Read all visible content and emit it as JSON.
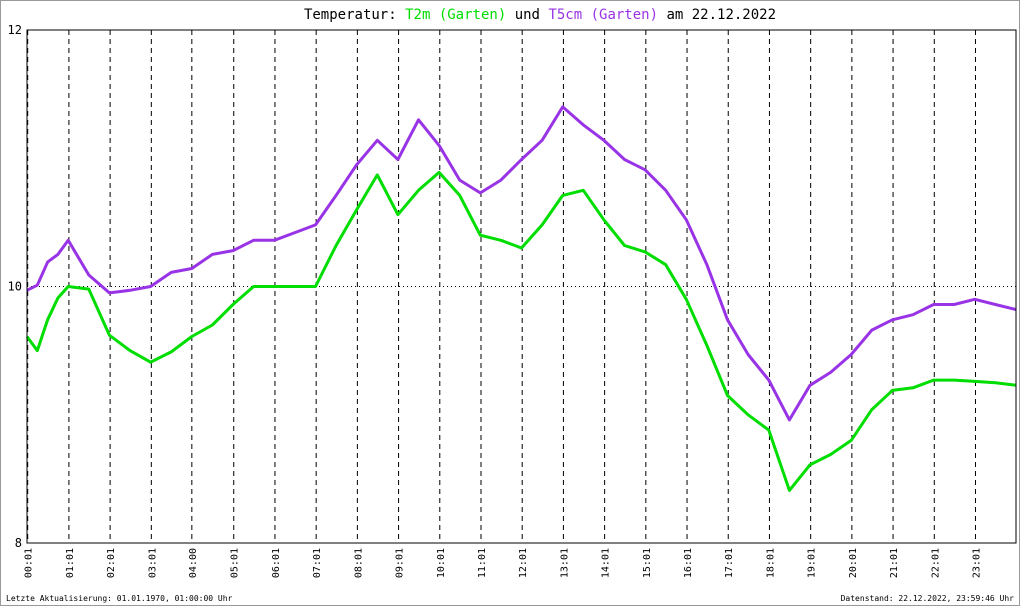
{
  "chart_data": {
    "type": "line",
    "title_prefix": "Temperatur:",
    "title_joiner": "und",
    "title_suffix": "am 22.12.2022",
    "footer_left": "Letzte Aktualisierung: 01.01.1970, 01:00:00 Uhr",
    "footer_right": "Datenstand: 22.12.2022, 23:59:46 Uhr",
    "x": [
      0,
      0.25,
      0.5,
      0.75,
      1,
      1.5,
      2,
      2.5,
      3,
      3.5,
      4,
      4.5,
      5,
      5.5,
      6,
      6.5,
      7,
      7.5,
      8,
      8.5,
      9,
      9.5,
      10,
      10.5,
      11,
      11.5,
      12,
      12.5,
      13,
      13.5,
      14,
      14.5,
      15,
      15.5,
      16,
      16.5,
      17,
      17.5,
      18,
      18.5,
      19,
      19.5,
      20,
      20.5,
      21,
      21.5,
      22,
      22.5,
      23,
      23.5,
      24
    ],
    "xlim": [
      0,
      24
    ],
    "xticks": [
      {
        "value": 0.017,
        "label": "00:01"
      },
      {
        "value": 1.017,
        "label": "01:01"
      },
      {
        "value": 2.017,
        "label": "02:01"
      },
      {
        "value": 3.017,
        "label": "03:01"
      },
      {
        "value": 4.0,
        "label": "04:00"
      },
      {
        "value": 5.017,
        "label": "05:01"
      },
      {
        "value": 6.017,
        "label": "06:01"
      },
      {
        "value": 7.017,
        "label": "07:01"
      },
      {
        "value": 8.017,
        "label": "08:01"
      },
      {
        "value": 9.017,
        "label": "09:01"
      },
      {
        "value": 10.017,
        "label": "10:01"
      },
      {
        "value": 11.017,
        "label": "11:01"
      },
      {
        "value": 12.017,
        "label": "12:01"
      },
      {
        "value": 13.017,
        "label": "13:01"
      },
      {
        "value": 14.017,
        "label": "14:01"
      },
      {
        "value": 15.017,
        "label": "15:01"
      },
      {
        "value": 16.017,
        "label": "16:01"
      },
      {
        "value": 17.017,
        "label": "17:01"
      },
      {
        "value": 18.017,
        "label": "18:01"
      },
      {
        "value": 19.017,
        "label": "19:01"
      },
      {
        "value": 20.017,
        "label": "20:01"
      },
      {
        "value": 21.017,
        "label": "21:01"
      },
      {
        "value": 22.017,
        "label": "22:01"
      },
      {
        "value": 23.017,
        "label": "23:01"
      }
    ],
    "ylim": [
      8,
      12
    ],
    "yticks": [
      8,
      10,
      12
    ],
    "grid": true,
    "series": [
      {
        "name": "T2m (Garten)",
        "color": "#00dd00",
        "values": [
          9.61,
          9.5,
          9.74,
          9.91,
          10.0,
          9.98,
          9.62,
          9.5,
          9.41,
          9.49,
          9.61,
          9.7,
          9.86,
          10.0,
          10.0,
          10.0,
          10.0,
          10.32,
          10.6,
          10.87,
          10.56,
          10.75,
          10.89,
          10.71,
          10.4,
          10.36,
          10.3,
          10.48,
          10.71,
          10.75,
          10.52,
          10.32,
          10.27,
          10.17,
          9.9,
          9.54,
          9.15,
          9.0,
          8.88,
          8.41,
          8.61,
          8.69,
          8.8,
          9.04,
          9.19,
          9.21,
          9.27,
          9.27,
          9.26,
          9.25,
          9.23
        ]
      },
      {
        "name": "T5cm (Garten)",
        "color": "#9933e6",
        "values": [
          9.97,
          10.01,
          10.19,
          10.25,
          10.36,
          10.09,
          9.95,
          9.97,
          10.0,
          10.11,
          10.14,
          10.25,
          10.28,
          10.36,
          10.36,
          10.42,
          10.48,
          10.71,
          10.95,
          11.14,
          10.99,
          11.3,
          11.1,
          10.83,
          10.73,
          10.83,
          10.99,
          11.14,
          11.4,
          11.26,
          11.14,
          10.99,
          10.91,
          10.75,
          10.52,
          10.17,
          9.74,
          9.47,
          9.27,
          8.96,
          9.23,
          9.33,
          9.47,
          9.66,
          9.74,
          9.78,
          9.86,
          9.86,
          9.9,
          9.86,
          9.82
        ]
      }
    ]
  }
}
